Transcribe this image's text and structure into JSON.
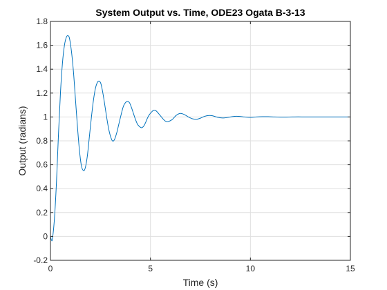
{
  "chart_data": {
    "type": "line",
    "title": "System Output vs. Time, ODE23 Ogata B-3-13",
    "xlabel": "Time (s)",
    "ylabel": "Output (radians)",
    "xlim": [
      0,
      15
    ],
    "ylim": [
      -0.2,
      1.8
    ],
    "grid": true,
    "x_ticks": [
      0,
      5,
      10,
      15
    ],
    "x_tick_labels": [
      "0",
      "5",
      "10",
      "15"
    ],
    "y_ticks": [
      -0.2,
      0,
      0.2,
      0.4,
      0.6,
      0.8,
      1,
      1.2,
      1.4,
      1.6,
      1.8
    ],
    "y_tick_labels": [
      "-0.2",
      "0",
      "0.2",
      "0.4",
      "0.6",
      "0.8",
      "1",
      "1.2",
      "1.4",
      "1.6",
      "1.8"
    ],
    "series": [
      {
        "color": "#0072bd",
        "x": [
          0,
          0.05,
          0.1,
          0.2,
          0.3,
          0.4,
          0.5,
          0.6,
          0.7,
          0.8,
          0.88,
          0.95,
          1.05,
          1.15,
          1.25,
          1.35,
          1.45,
          1.55,
          1.66,
          1.75,
          1.85,
          1.95,
          2.05,
          2.15,
          2.25,
          2.35,
          2.44,
          2.52,
          2.6,
          2.7,
          2.8,
          2.9,
          3.0,
          3.1,
          3.2,
          3.32,
          3.42,
          3.55,
          3.65,
          3.75,
          3.85,
          3.95,
          4.05,
          4.15,
          4.25,
          4.35,
          4.45,
          4.55,
          4.65,
          4.75,
          4.85,
          4.95,
          5.05,
          5.15,
          5.25,
          5.35,
          5.45,
          5.55,
          5.65,
          5.75,
          5.85,
          5.95,
          6.1,
          6.3,
          6.5,
          6.7,
          6.9,
          7.1,
          7.3,
          7.5,
          7.7,
          7.9,
          8.1,
          8.3,
          8.5,
          8.7,
          8.9,
          9.1,
          9.3,
          9.5,
          9.7,
          9.9,
          10.1,
          10.3,
          10.6,
          10.9,
          11.2,
          11.5,
          11.8,
          12.1,
          12.4,
          12.7,
          13.0,
          13.3,
          13.6,
          13.9,
          14.2,
          14.5,
          14.8,
          15.0
        ],
        "y": [
          0,
          -0.03,
          -0.02,
          0.15,
          0.45,
          0.85,
          1.2,
          1.45,
          1.6,
          1.67,
          1.68,
          1.66,
          1.55,
          1.38,
          1.15,
          0.92,
          0.72,
          0.59,
          0.55,
          0.58,
          0.68,
          0.84,
          1.0,
          1.14,
          1.24,
          1.29,
          1.3,
          1.28,
          1.22,
          1.12,
          1.01,
          0.91,
          0.84,
          0.8,
          0.81,
          0.87,
          0.94,
          1.03,
          1.09,
          1.12,
          1.13,
          1.12,
          1.08,
          1.03,
          0.98,
          0.94,
          0.92,
          0.91,
          0.92,
          0.95,
          0.99,
          1.02,
          1.04,
          1.055,
          1.055,
          1.04,
          1.02,
          1.0,
          0.98,
          0.965,
          0.96,
          0.965,
          0.98,
          1.015,
          1.03,
          1.02,
          1.0,
          0.985,
          0.98,
          0.99,
          1.005,
          1.012,
          1.01,
          1.0,
          0.993,
          0.992,
          0.997,
          1.003,
          1.006,
          1.004,
          1.0,
          0.997,
          0.997,
          1.0,
          1.002,
          1.002,
          1.0,
          0.999,
          0.999,
          1.0,
          1.001,
          1.0,
          1.0,
          1.0,
          1.0,
          1.0,
          1.0,
          1.0,
          1.0,
          1.0
        ]
      }
    ]
  }
}
